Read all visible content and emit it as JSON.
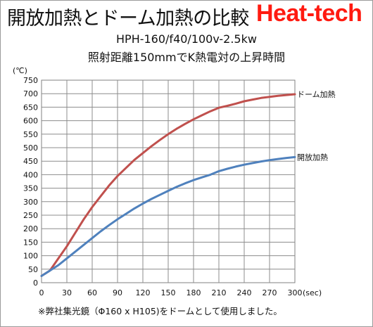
{
  "title": "開放加熱とドーム加熱の比較",
  "brand": "Heat-tech",
  "subtitle_1": "HPH-160/f40/100v-2.5kw",
  "subtitle_2": "照射距離150mmでK熱電対の上昇時間",
  "footnote": "※弊社集光鏡（Φ160 x H105)をドームとして使用しました。",
  "chart_data": {
    "type": "line",
    "title": "開放加熱とドーム加熱の比較",
    "subtitle": "HPH-160/f40/100v-2.5kw 照射距離150mmでK熱電対の上昇時間",
    "xlabel": "(sec)",
    "ylabel": "(℃)",
    "xlim": [
      0,
      300
    ],
    "ylim": [
      0,
      750
    ],
    "xticks": [
      0,
      30,
      60,
      90,
      120,
      150,
      180,
      210,
      240,
      270,
      300
    ],
    "yticks": [
      0,
      50,
      100,
      150,
      200,
      250,
      300,
      350,
      400,
      450,
      500,
      550,
      600,
      650,
      700,
      750
    ],
    "grid": true,
    "legend": "line-end labels",
    "series": [
      {
        "name": "ドーム加熱",
        "color": "#c0504d",
        "x": [
          0,
          10,
          20,
          30,
          40,
          50,
          60,
          70,
          80,
          90,
          100,
          110,
          120,
          130,
          140,
          150,
          160,
          170,
          180,
          190,
          200,
          210,
          220,
          230,
          240,
          250,
          260,
          270,
          280,
          290,
          300
        ],
        "y": [
          25,
          45,
          90,
          135,
          185,
          235,
          280,
          320,
          360,
          395,
          425,
          455,
          480,
          505,
          528,
          550,
          570,
          588,
          605,
          620,
          635,
          648,
          655,
          663,
          672,
          678,
          684,
          688,
          692,
          695,
          698
        ]
      },
      {
        "name": "開放加熱",
        "color": "#4f81bd",
        "x": [
          0,
          10,
          20,
          30,
          40,
          50,
          60,
          70,
          80,
          90,
          100,
          110,
          120,
          130,
          140,
          150,
          160,
          170,
          180,
          190,
          200,
          210,
          220,
          230,
          240,
          250,
          260,
          270,
          280,
          290,
          300
        ],
        "y": [
          25,
          45,
          65,
          90,
          115,
          140,
          165,
          190,
          213,
          235,
          255,
          275,
          293,
          310,
          325,
          340,
          355,
          368,
          380,
          390,
          400,
          413,
          422,
          430,
          437,
          443,
          449,
          454,
          458,
          462,
          465
        ]
      }
    ]
  }
}
